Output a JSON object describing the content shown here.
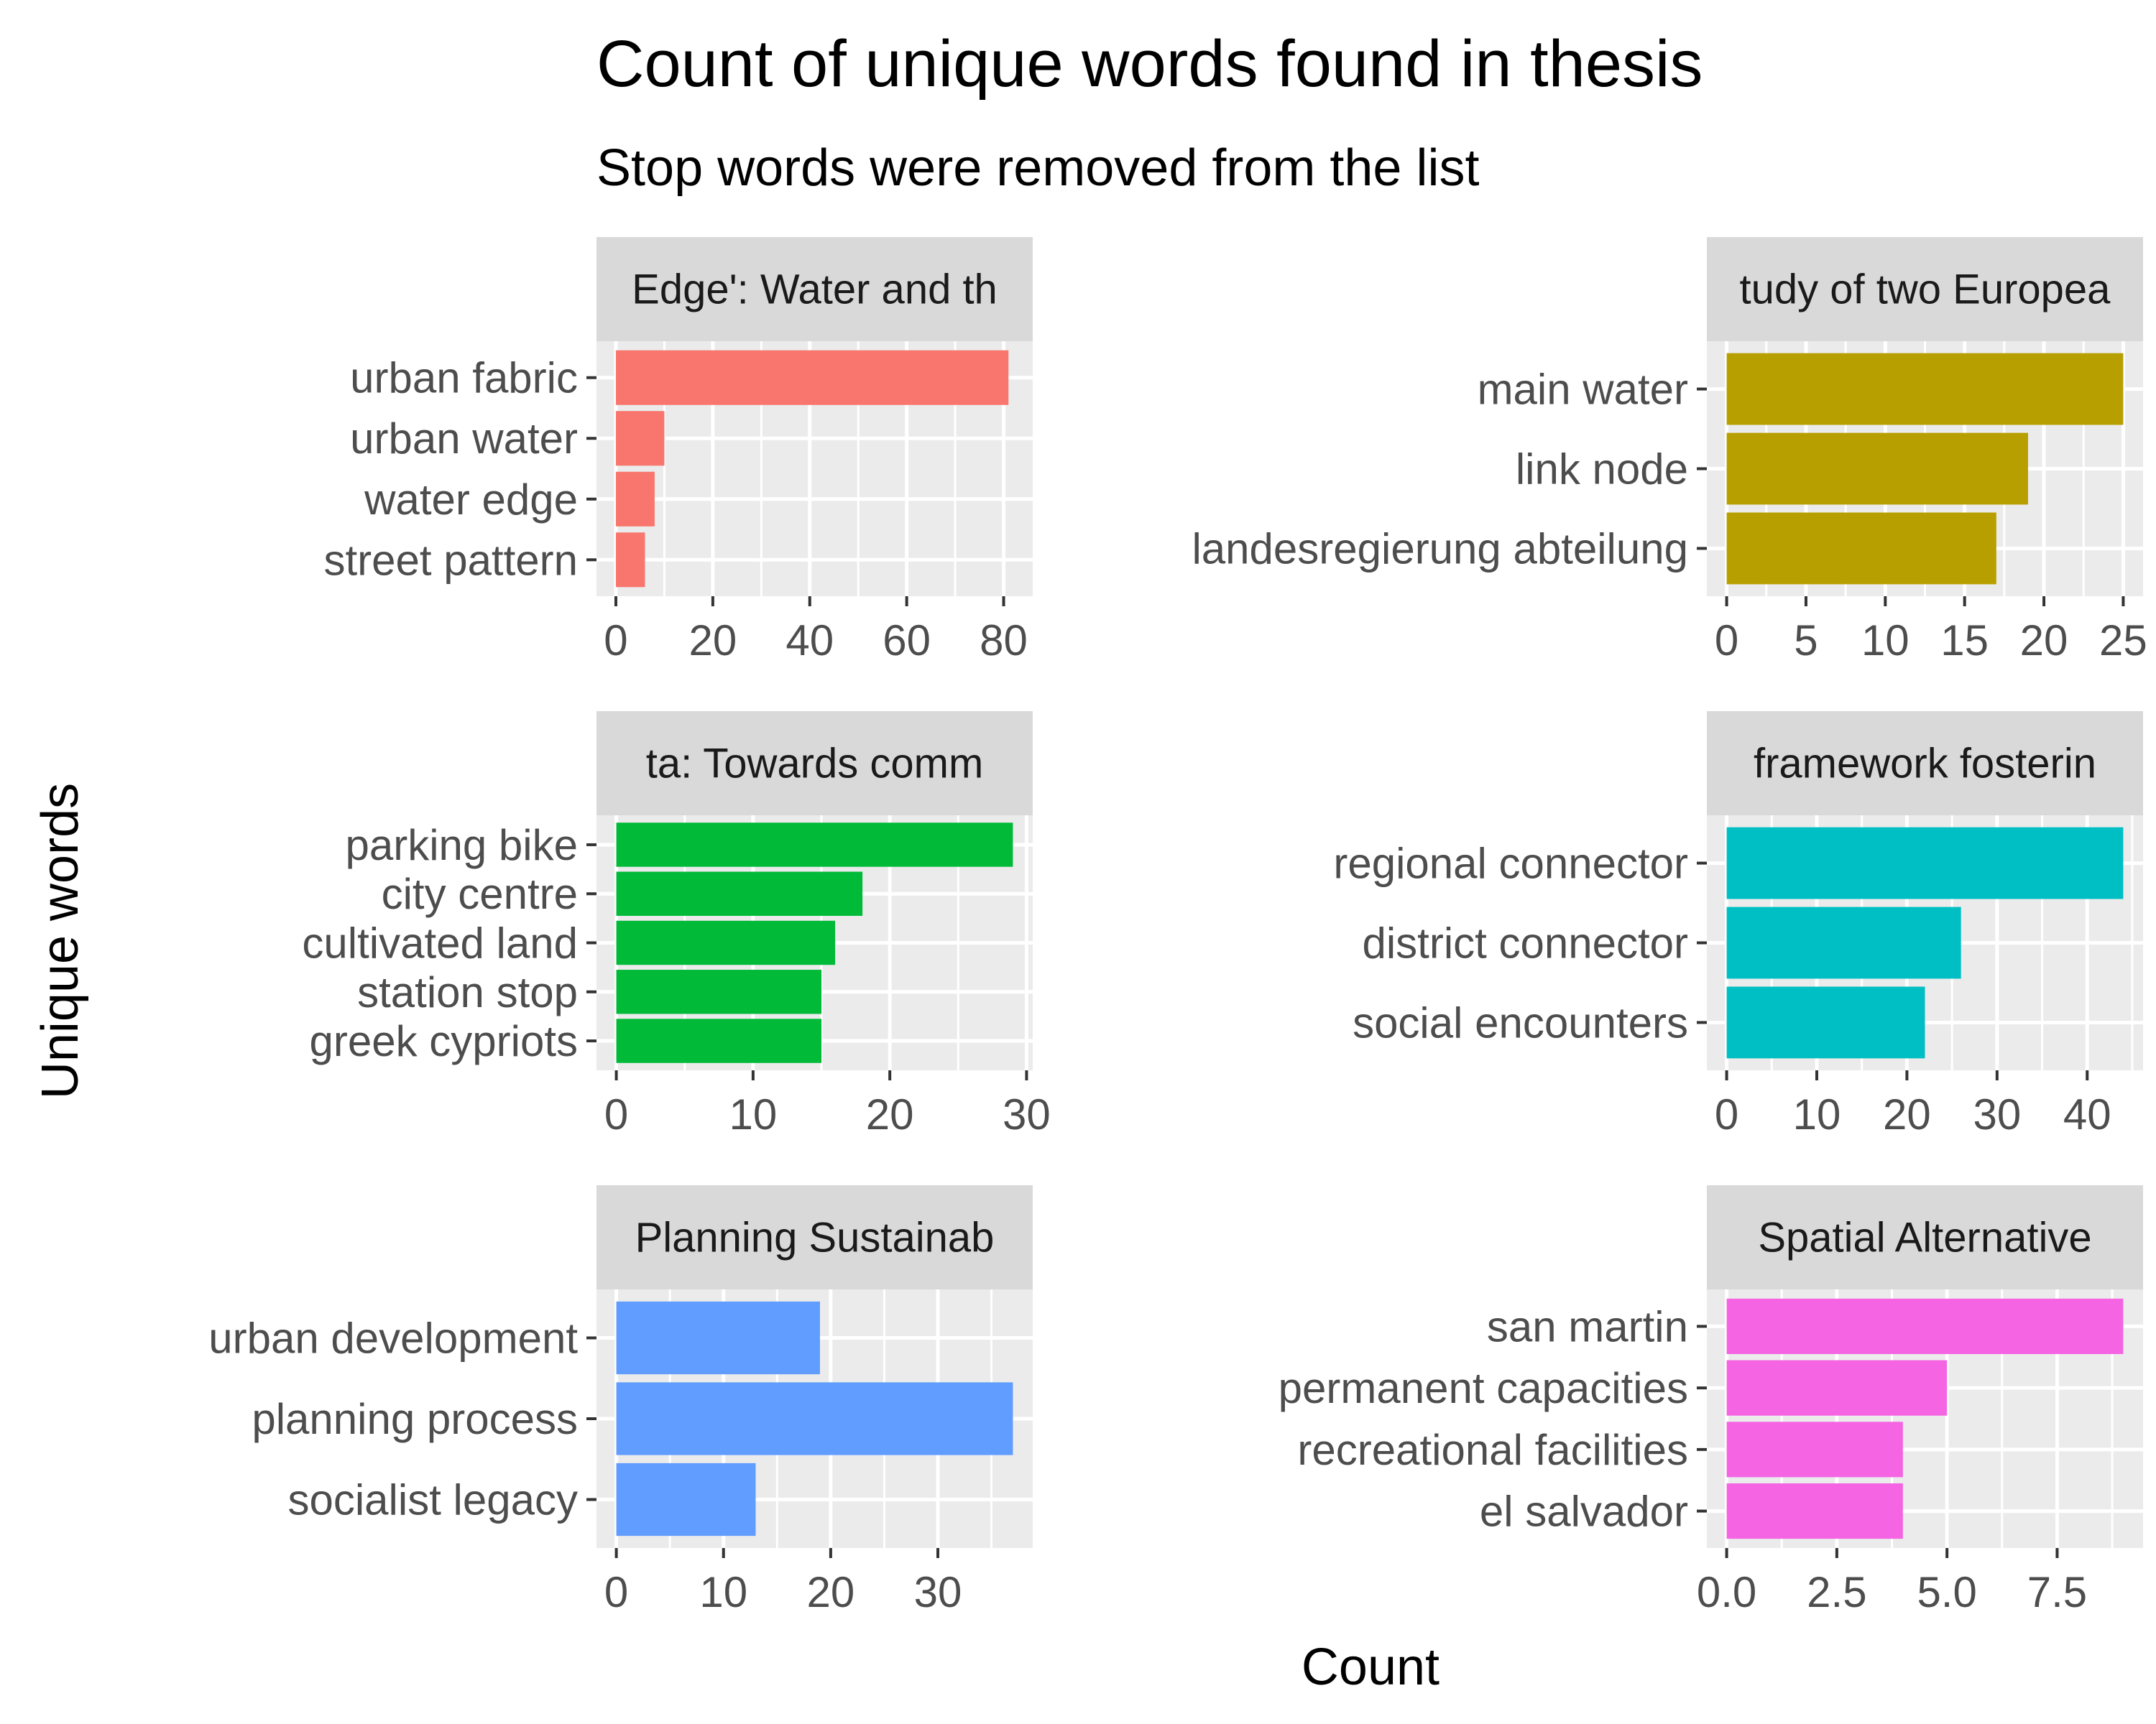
{
  "title": "Count of unique words found in thesis",
  "subtitle": "Stop words were removed from the list",
  "xlabel": "Count",
  "ylabel": "Unique words",
  "colors": {
    "panel_bg": "#ebebeb",
    "grid": "#ffffff",
    "strip_bg": "#d9d9d9",
    "tick": "#333333"
  },
  "chart_data": [
    {
      "type": "bar",
      "facet_label": "Edge': Water and th",
      "color": "#F8766D",
      "categories": [
        "urban fabric",
        "urban water",
        "water edge",
        "street pattern"
      ],
      "values": [
        81,
        10,
        8,
        6
      ],
      "xlim": [
        -4,
        86
      ],
      "xticks": [
        0,
        20,
        40,
        60,
        80
      ],
      "xtick_labels": [
        "0",
        "20",
        "40",
        "60",
        "80"
      ]
    },
    {
      "type": "bar",
      "facet_label": "tudy of two Europea",
      "color": "#B79F00",
      "categories": [
        "main water",
        "link node",
        "landesregierung abteilung"
      ],
      "values": [
        25,
        19,
        17
      ],
      "xlim": [
        -1.25,
        26.25
      ],
      "xticks": [
        0,
        5,
        10,
        15,
        20,
        25
      ],
      "xtick_labels": [
        "0",
        "5",
        "10",
        "15",
        "20",
        "25"
      ]
    },
    {
      "type": "bar",
      "facet_label": "ta: Towards comm",
      "color": "#00BA38",
      "categories": [
        "parking bike",
        "city centre",
        "cultivated land",
        "station stop",
        "greek cypriots"
      ],
      "values": [
        29,
        18,
        16,
        15,
        15
      ],
      "xlim": [
        -1.45,
        30.45
      ],
      "xticks": [
        0,
        10,
        20,
        30
      ],
      "xtick_labels": [
        "0",
        "10",
        "20",
        "30"
      ]
    },
    {
      "type": "bar",
      "facet_label": "framework fosterin",
      "color": "#00BFC4",
      "categories": [
        "regional connector",
        "district connector",
        "social encounters"
      ],
      "values": [
        44,
        26,
        22
      ],
      "xlim": [
        -2.2,
        46.2
      ],
      "xticks": [
        0,
        10,
        20,
        30,
        40
      ],
      "xtick_labels": [
        "0",
        "10",
        "20",
        "30",
        "40"
      ]
    },
    {
      "type": "bar",
      "facet_label": "Planning Sustainab",
      "color": "#619CFF",
      "categories": [
        "urban development",
        "planning process",
        "socialist legacy"
      ],
      "values": [
        19,
        37,
        13
      ],
      "xlim": [
        -1.85,
        38.85
      ],
      "xticks": [
        0,
        10,
        20,
        30
      ],
      "xtick_labels": [
        "0",
        "10",
        "20",
        "30"
      ]
    },
    {
      "type": "bar",
      "facet_label": "Spatial Alternative",
      "color": "#F564E3",
      "categories": [
        "san martin",
        "permanent capacities",
        "recreational facilities",
        "el salvador"
      ],
      "values": [
        9,
        5,
        4,
        4
      ],
      "xlim": [
        -0.45,
        9.45
      ],
      "xticks": [
        0,
        2.5,
        5,
        7.5
      ],
      "xtick_labels": [
        "0.0",
        "2.5",
        "5.0",
        "7.5"
      ]
    }
  ]
}
